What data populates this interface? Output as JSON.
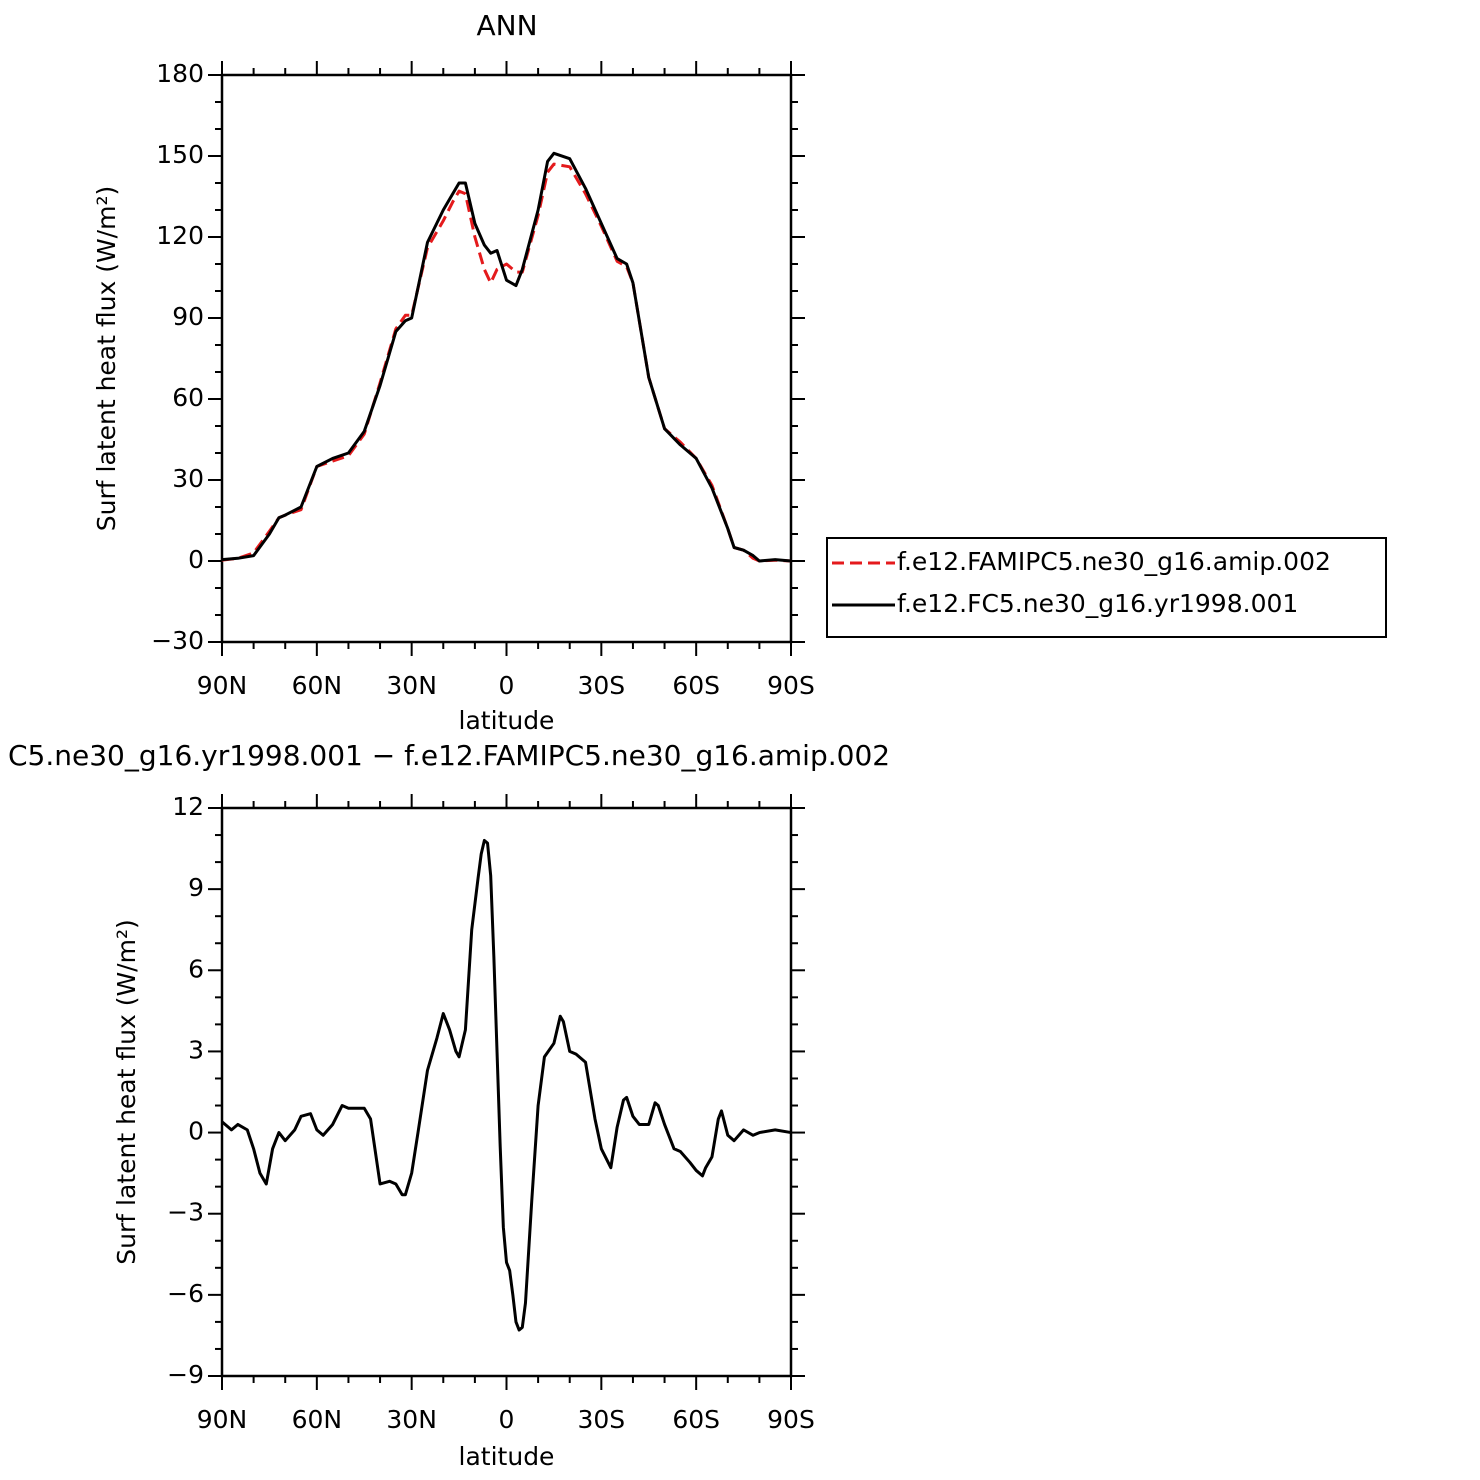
{
  "chart_data": [
    {
      "type": "line",
      "title": "ANN",
      "xlabel": "latitude",
      "ylabel": "Surf latent heat flux (W/m²)",
      "x": [
        90,
        85,
        80,
        75,
        72,
        70,
        65,
        60,
        55,
        50,
        45,
        40,
        35,
        32,
        30,
        25,
        20,
        17,
        15,
        13,
        10,
        7,
        5,
        3,
        0,
        -3,
        -5,
        -10,
        -13,
        -15,
        -20,
        -25,
        -30,
        -35,
        -38,
        -40,
        -45,
        -50,
        -55,
        -60,
        -65,
        -70,
        -72,
        -75,
        -78,
        -80,
        -85,
        -90
      ],
      "series": [
        {
          "name": "f.e12.FAMIPC5.ne30_g16.amip.002",
          "color": "#e41a1c",
          "dashed": true,
          "values": [
            0.3,
            1,
            3,
            11,
            16,
            17,
            19,
            35,
            37,
            39,
            47,
            66,
            86,
            91,
            91,
            116,
            126,
            133,
            137,
            136,
            120,
            108,
            103,
            108,
            110,
            107,
            107,
            128,
            144,
            147,
            146,
            136,
            124,
            111,
            109,
            103,
            68,
            49,
            44,
            38,
            28,
            12,
            5,
            4,
            1,
            0,
            0.3,
            0
          ]
        },
        {
          "name": "f.e12.FC5.ne30_g16.yr1998.001",
          "color": "#000000",
          "dashed": false,
          "values": [
            0.5,
            1,
            2,
            10,
            16,
            17,
            20,
            35,
            38,
            40,
            48,
            65,
            85,
            89,
            90,
            118,
            130,
            136,
            140,
            140,
            125,
            117,
            114,
            115,
            104,
            102,
            108,
            130,
            148,
            151,
            149,
            138,
            125,
            112,
            110,
            103,
            68,
            49,
            43,
            38,
            27,
            12,
            5,
            4,
            2,
            0,
            0.5,
            0
          ]
        }
      ],
      "xlim": [
        90,
        -90
      ],
      "xticks": [
        {
          "value": 90,
          "label": "90N"
        },
        {
          "value": 60,
          "label": "60N"
        },
        {
          "value": 30,
          "label": "30N"
        },
        0,
        {
          "value": -30,
          "label": "30S"
        },
        {
          "value": -60,
          "label": "60S"
        },
        {
          "value": -90,
          "label": "90S"
        }
      ],
      "ylim": [
        -30,
        180
      ],
      "yticks": [
        {
          "value": -30,
          "label": "−30"
        },
        0,
        30,
        60,
        90,
        120,
        150,
        180
      ],
      "legend": "right"
    },
    {
      "type": "line",
      "title": "C5.ne30_g16.yr1998.001 − f.e12.FAMIPC5.ne30_g16.amip.002",
      "xlabel": "latitude",
      "ylabel": "Surf latent heat flux (W/m²)",
      "x": [
        90,
        87,
        85,
        82,
        80,
        78,
        76,
        74,
        72,
        70,
        67,
        65,
        62,
        60,
        58,
        55,
        52,
        50,
        47,
        45,
        43,
        40,
        37,
        35,
        33,
        32,
        30,
        28,
        25,
        22,
        20,
        18,
        16,
        15,
        13,
        11,
        9,
        8,
        7,
        6,
        5,
        4,
        3,
        2,
        1,
        0,
        -1,
        -2,
        -3,
        -4,
        -5,
        -6,
        -8,
        -10,
        -12,
        -15,
        -17,
        -18,
        -20,
        -22,
        -25,
        -28,
        -30,
        -33,
        -35,
        -37,
        -38,
        -40,
        -42,
        -45,
        -47,
        -48,
        -50,
        -53,
        -55,
        -58,
        -60,
        -62,
        -63,
        -65,
        -67,
        -68,
        -70,
        -72,
        -75,
        -78,
        -80,
        -85,
        -90
      ],
      "values": [
        0.4,
        0.1,
        0.3,
        0.1,
        -0.6,
        -1.5,
        -1.9,
        -0.6,
        0,
        -0.3,
        0.1,
        0.6,
        0.7,
        0.1,
        -0.1,
        0.3,
        1.0,
        0.9,
        0.9,
        0.9,
        0.5,
        -1.9,
        -1.8,
        -1.9,
        -2.3,
        -2.3,
        -1.5,
        0,
        2.3,
        3.5,
        4.4,
        3.8,
        3.0,
        2.8,
        3.8,
        7.5,
        9.4,
        10.3,
        10.8,
        10.7,
        9.5,
        6.5,
        3,
        -0.5,
        -3.5,
        -4.8,
        -5.1,
        -6,
        -7,
        -7.3,
        -7.2,
        -6.3,
        -2.5,
        1.0,
        2.8,
        3.3,
        4.3,
        4.1,
        3.0,
        2.9,
        2.6,
        0.5,
        -0.6,
        -1.3,
        0.2,
        1.2,
        1.3,
        0.6,
        0.3,
        0.3,
        1.1,
        1.0,
        0.3,
        -0.6,
        -0.7,
        -1.1,
        -1.4,
        -1.6,
        -1.3,
        -0.9,
        0.5,
        0.8,
        -0.1,
        -0.3,
        0.1,
        -0.1,
        0,
        0.1,
        0
      ],
      "color": "#000000",
      "xlim": [
        90,
        -90
      ],
      "xticks": [
        {
          "value": 90,
          "label": "90N"
        },
        {
          "value": 60,
          "label": "60N"
        },
        {
          "value": 30,
          "label": "30N"
        },
        0,
        {
          "value": -30,
          "label": "30S"
        },
        {
          "value": -60,
          "label": "60S"
        },
        {
          "value": -90,
          "label": "90S"
        }
      ],
      "ylim": [
        -9,
        12
      ],
      "yticks": [
        {
          "value": -9,
          "label": "−9"
        },
        {
          "value": -6,
          "label": "−6"
        },
        {
          "value": -3,
          "label": "−3"
        },
        0,
        3,
        6,
        9,
        12
      ]
    }
  ]
}
